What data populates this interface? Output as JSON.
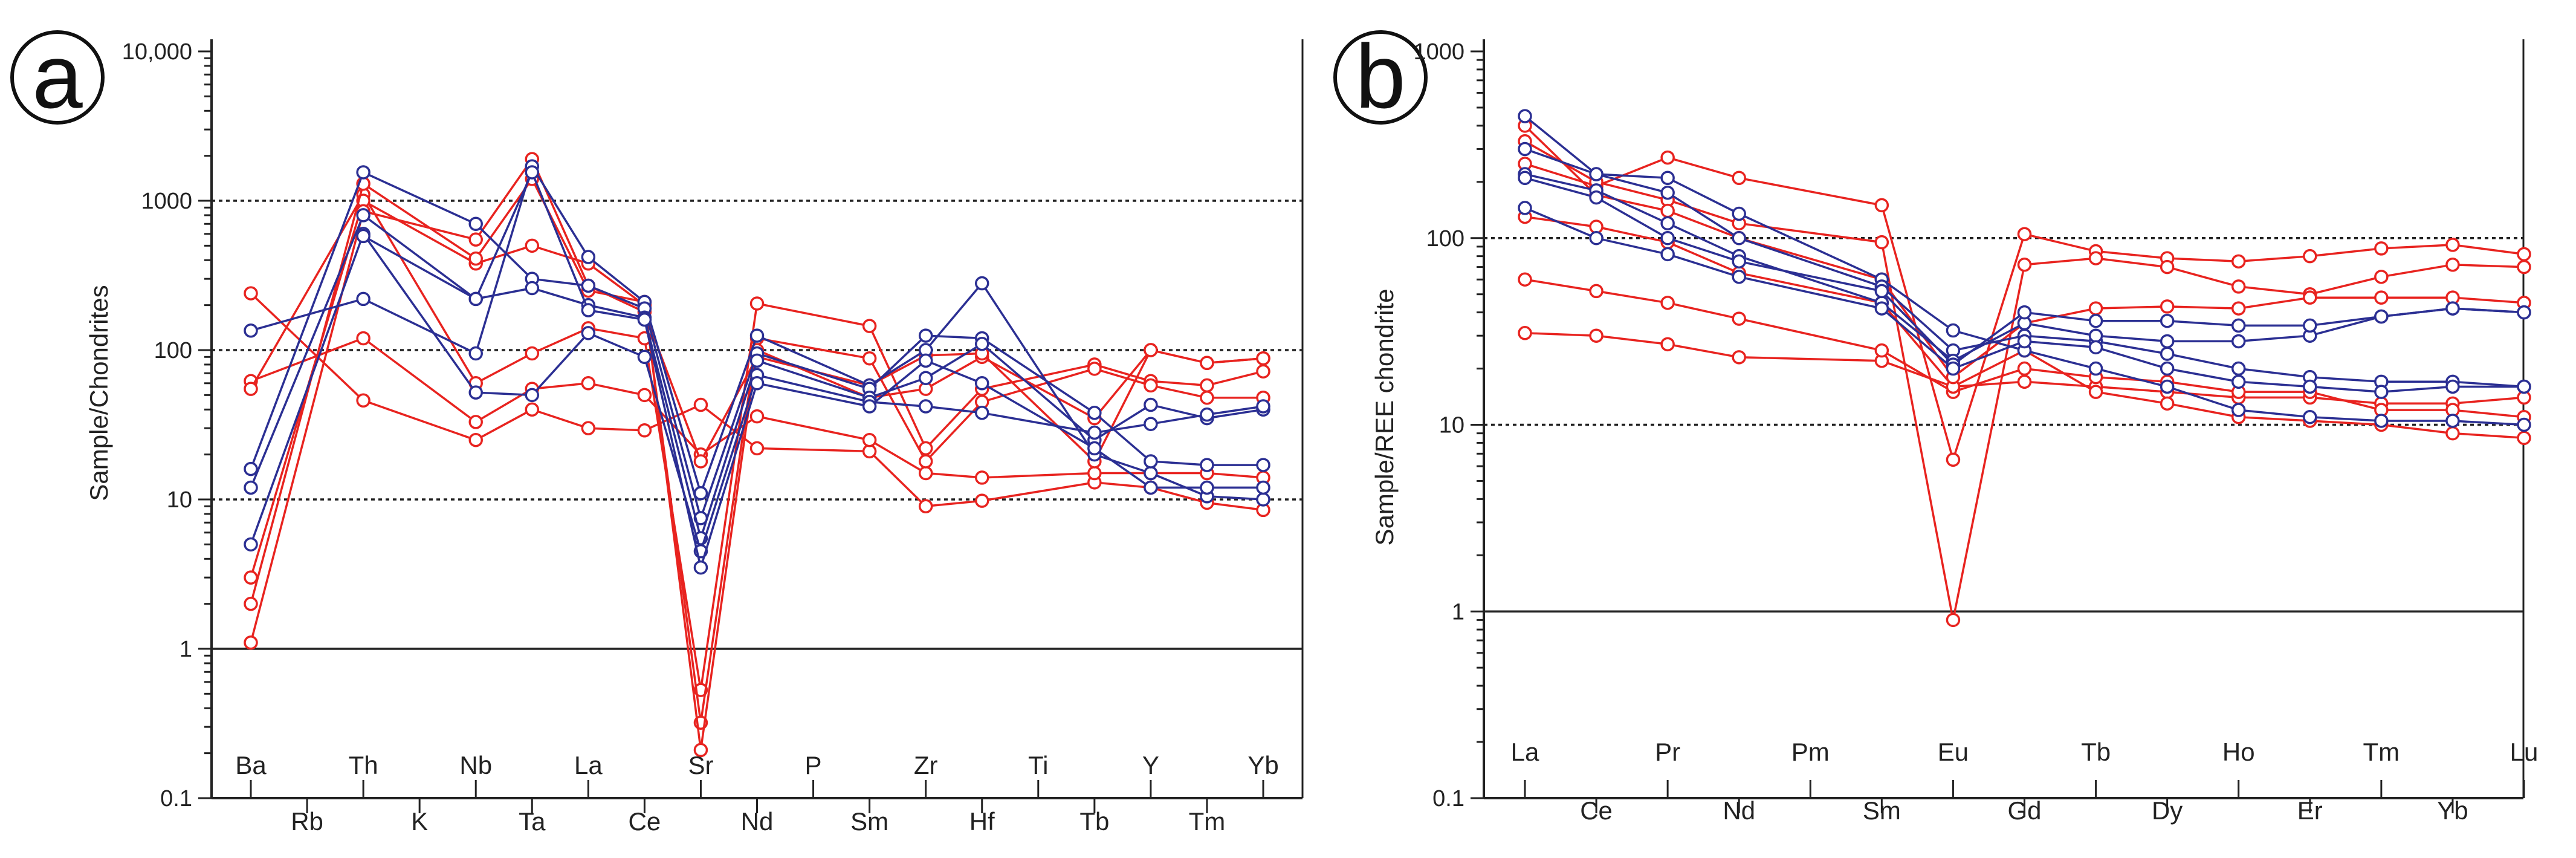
{
  "colors": {
    "red": "#e8231f",
    "blue": "#2b2f93",
    "axis": "#222222"
  },
  "chart_data": [
    {
      "panel": "a",
      "type": "line",
      "ylabel": "Sample/Chondrites",
      "yscale": "log",
      "ylim": [
        0.1,
        10000
      ],
      "ytick_labels": [
        "0.1",
        "1",
        "10",
        "100",
        "1000",
        "10,000"
      ],
      "reference_lines": {
        "dotted": [
          10,
          100,
          1000
        ],
        "solid": [
          1
        ]
      },
      "categories": [
        "Ba",
        "Rb",
        "Th",
        "K",
        "Nb",
        "Ta",
        "La",
        "Ce",
        "Sr",
        "Nd",
        "P",
        "Sm",
        "Zr",
        "Hf",
        "Ti",
        "Tb",
        "Y",
        "Tm",
        "Yb"
      ],
      "series": [
        {
          "name": "red-1",
          "color": "red",
          "values": [
            240,
            null,
            46,
            null,
            25,
            40,
            30,
            29,
            43,
            22,
            null,
            21,
            9,
            9.8,
            null,
            13,
            12,
            9.5,
            8.5
          ]
        },
        {
          "name": "red-2",
          "color": "red",
          "values": [
            62,
            null,
            120,
            null,
            33,
            55,
            60,
            50,
            20,
            36,
            null,
            25,
            15,
            14,
            null,
            15,
            15,
            15,
            14
          ]
        },
        {
          "name": "red-3",
          "color": "red",
          "values": [
            55,
            null,
            1100,
            null,
            60,
            95,
            140,
            120,
            0.53,
            205,
            null,
            145,
            22,
            55,
            null,
            80,
            62,
            58,
            72
          ]
        },
        {
          "name": "red-4",
          "color": "red",
          "values": [
            3,
            null,
            1000,
            null,
            380,
            500,
            380,
            200,
            0.32,
            120,
            null,
            88,
            18,
            45,
            null,
            75,
            58,
            48,
            48
          ]
        },
        {
          "name": "red-5",
          "color": "red",
          "values": [
            2,
            null,
            1300,
            null,
            410,
            1400,
            250,
            210,
            0.21,
            100,
            null,
            48,
            55,
            90,
            null,
            35,
            100,
            82,
            88
          ]
        },
        {
          "name": "red-6",
          "color": "red",
          "values": [
            1.1,
            null,
            850,
            null,
            550,
            1900,
            270,
            180,
            18,
            90,
            null,
            58,
            92,
            95,
            null,
            18,
            100,
            82,
            88
          ]
        },
        {
          "name": "blue-1",
          "color": "blue",
          "values": [
            135,
            null,
            220,
            null,
            95,
            1700,
            420,
            210,
            11,
            125,
            null,
            58,
            100,
            280,
            null,
            20,
            15,
            10.5,
            10
          ]
        },
        {
          "name": "blue-2",
          "color": "blue",
          "values": [
            16,
            null,
            1550,
            null,
            700,
            300,
            270,
            190,
            7.5,
            95,
            null,
            55,
            125,
            120,
            null,
            38,
            18,
            17,
            17
          ]
        },
        {
          "name": "blue-3",
          "color": "blue",
          "values": [
            12,
            null,
            800,
            null,
            220,
            260,
            200,
            165,
            5.5,
            85,
            null,
            48,
            65,
            110,
            null,
            25,
            43,
            35,
            40
          ]
        },
        {
          "name": "blue-4",
          "color": "blue",
          "values": [
            5,
            null,
            600,
            null,
            52,
            50,
            130,
            90,
            4.5,
            68,
            null,
            45,
            42,
            38,
            null,
            28,
            32,
            37,
            42
          ]
        },
        {
          "name": "blue-5",
          "color": "blue",
          "values": [
            null,
            null,
            580,
            null,
            220,
            1550,
            185,
            160,
            3.5,
            60,
            null,
            42,
            85,
            60,
            null,
            22,
            12,
            12,
            12
          ]
        }
      ]
    },
    {
      "panel": "b",
      "type": "line",
      "ylabel": "Sample/REE chondrite",
      "yscale": "log",
      "ylim": [
        0.1,
        1000
      ],
      "ytick_labels": [
        "0.1",
        "1",
        "10",
        "100",
        "1000"
      ],
      "reference_lines": {
        "dotted": [
          10,
          100
        ],
        "solid": [
          1
        ]
      },
      "categories": [
        "La",
        "Ce",
        "Pr",
        "Nd",
        "Pm",
        "Sm",
        "Eu",
        "Gd",
        "Tb",
        "Dy",
        "Ho",
        "Er",
        "Tm",
        "Yb",
        "Lu"
      ],
      "series": [
        {
          "name": "red-1",
          "color": "red",
          "values": [
            31,
            30,
            27,
            23,
            null,
            22,
            16,
            17,
            16,
            15,
            14,
            14,
            13,
            13,
            14
          ]
        },
        {
          "name": "red-2",
          "color": "red",
          "values": [
            60,
            52,
            45,
            37,
            null,
            25,
            15,
            20,
            18,
            17,
            15,
            15,
            12,
            12,
            11
          ]
        },
        {
          "name": "red-3",
          "color": "red",
          "values": [
            130,
            115,
            95,
            65,
            null,
            45,
            16,
            25,
            15,
            13,
            11,
            10.5,
            10,
            9,
            8.5
          ]
        },
        {
          "name": "red-4",
          "color": "red",
          "values": [
            250,
            190,
            270,
            210,
            null,
            150,
            6.5,
            105,
            85,
            78,
            75,
            80,
            88,
            92,
            82
          ]
        },
        {
          "name": "red-5",
          "color": "red",
          "values": [
            330,
            200,
            160,
            120,
            null,
            95,
            0.9,
            72,
            78,
            70,
            55,
            50,
            62,
            72,
            70
          ]
        },
        {
          "name": "red-6",
          "color": "red",
          "values": [
            400,
            170,
            140,
            100,
            null,
            60,
            18,
            35,
            42,
            43,
            42,
            48,
            48,
            48,
            45
          ]
        },
        {
          "name": "blue-1",
          "color": "blue",
          "values": [
            450,
            220,
            210,
            135,
            null,
            60,
            32,
            25,
            20,
            16,
            12,
            11,
            10.5,
            10.5,
            10
          ]
        },
        {
          "name": "blue-2",
          "color": "blue",
          "values": [
            300,
            220,
            175,
            100,
            null,
            55,
            25,
            30,
            28,
            24,
            20,
            18,
            17,
            17,
            16
          ]
        },
        {
          "name": "blue-3",
          "color": "blue",
          "values": [
            220,
            180,
            120,
            80,
            null,
            45,
            22,
            35,
            30,
            28,
            28,
            30,
            38,
            42,
            40
          ]
        },
        {
          "name": "blue-4",
          "color": "blue",
          "values": [
            210,
            165,
            100,
            75,
            null,
            52,
            21,
            40,
            36,
            36,
            34,
            34,
            38,
            42,
            40
          ]
        },
        {
          "name": "blue-5",
          "color": "blue",
          "values": [
            145,
            100,
            82,
            62,
            null,
            42,
            20,
            28,
            26,
            20,
            17,
            16,
            15,
            16,
            16
          ]
        }
      ]
    }
  ],
  "panels": {
    "a": {
      "letter": "a"
    },
    "b": {
      "letter": "b"
    }
  }
}
